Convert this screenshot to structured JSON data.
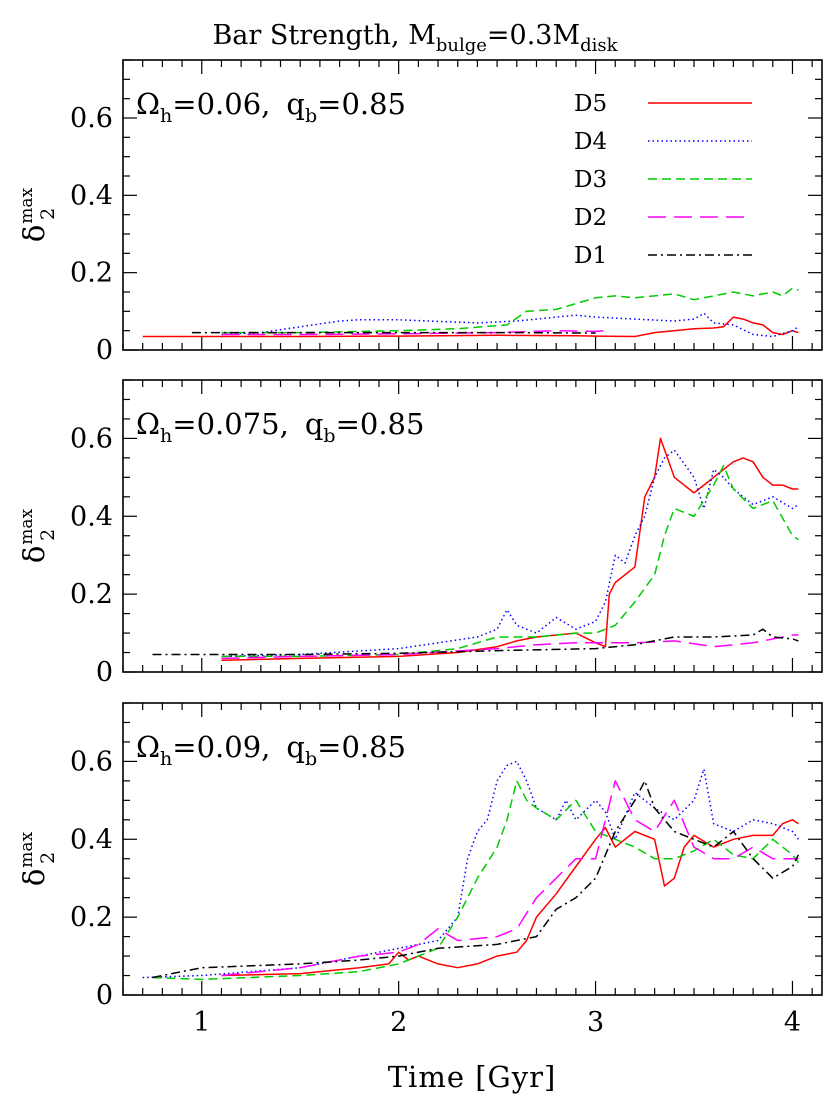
{
  "figure": {
    "title_main": "Bar Strength, M",
    "title_sub1": "bulge",
    "title_mid": "=0.3M",
    "title_sub2": "disk",
    "xlabel": "Time [Gyr]",
    "ylabel_main": "δ",
    "ylabel_sup": "max",
    "ylabel_sub": "2"
  },
  "chart_data": [
    {
      "type": "line",
      "panel": "top",
      "annotation": {
        "omega": "Ω",
        "omega_sub": "h",
        "omega_val": "=0.06,",
        "q": "q",
        "q_sub": "b",
        "q_val": "=0.85"
      },
      "xlim": [
        0.6,
        4.15
      ],
      "ylim": [
        0,
        0.75
      ],
      "xticks": [
        1,
        2,
        3,
        4
      ],
      "yticks": [
        0,
        0.2,
        0.4,
        0.6
      ],
      "ytick_labels": [
        "0",
        "0.2",
        "0.4",
        "0.6"
      ],
      "legend": {
        "placement": "top-right",
        "entries": [
          "D5",
          "D4",
          "D3",
          "D2",
          "D1"
        ]
      },
      "series": [
        {
          "name": "D5",
          "color": "#ff0000",
          "dash": "solid",
          "x": [
            0.7,
            1.0,
            1.5,
            2.0,
            2.5,
            2.9,
            3.0,
            3.2,
            3.3,
            3.5,
            3.6,
            3.65,
            3.7,
            3.75,
            3.8,
            3.85,
            3.9,
            3.95,
            4.0,
            4.03
          ],
          "y": [
            0.035,
            0.035,
            0.035,
            0.036,
            0.038,
            0.037,
            0.036,
            0.035,
            0.045,
            0.055,
            0.057,
            0.06,
            0.085,
            0.08,
            0.07,
            0.065,
            0.045,
            0.04,
            0.05,
            0.045
          ]
        },
        {
          "name": "D4",
          "color": "#0000ff",
          "dash": "dotted",
          "x": [
            1.1,
            1.3,
            1.5,
            1.7,
            1.8,
            2.0,
            2.2,
            2.4,
            2.6,
            2.7,
            2.8,
            2.9,
            3.0,
            3.2,
            3.4,
            3.5,
            3.55,
            3.6,
            3.7,
            3.8,
            3.9,
            4.0,
            4.03
          ],
          "y": [
            0.04,
            0.045,
            0.06,
            0.075,
            0.078,
            0.078,
            0.074,
            0.07,
            0.075,
            0.08,
            0.085,
            0.09,
            0.085,
            0.08,
            0.075,
            0.08,
            0.095,
            0.07,
            0.065,
            0.04,
            0.035,
            0.05,
            0.06
          ]
        },
        {
          "name": "D3",
          "color": "#00cc00",
          "dash": "dashed",
          "x": [
            1.1,
            1.5,
            2.0,
            2.3,
            2.55,
            2.65,
            2.8,
            2.9,
            3.0,
            3.1,
            3.2,
            3.3,
            3.4,
            3.5,
            3.6,
            3.7,
            3.8,
            3.9,
            3.95,
            4.0,
            4.03
          ],
          "y": [
            0.045,
            0.045,
            0.05,
            0.055,
            0.065,
            0.1,
            0.105,
            0.12,
            0.135,
            0.14,
            0.135,
            0.14,
            0.145,
            0.13,
            0.14,
            0.15,
            0.14,
            0.15,
            0.14,
            0.16,
            0.155
          ]
        },
        {
          "name": "D2",
          "color": "#ff00ff",
          "dash": "longdash",
          "x": [
            1.1,
            1.5,
            2.0,
            2.5,
            2.8,
            3.0,
            3.05
          ],
          "y": [
            0.04,
            0.04,
            0.042,
            0.045,
            0.05,
            0.048,
            0.05
          ]
        },
        {
          "name": "D1",
          "color": "#000000",
          "dash": "dashdot",
          "x": [
            0.95,
            1.2,
            1.5,
            2.0,
            2.3,
            2.6,
            2.9,
            3.0
          ],
          "y": [
            0.045,
            0.045,
            0.045,
            0.045,
            0.045,
            0.045,
            0.044,
            0.044
          ]
        }
      ]
    },
    {
      "type": "line",
      "panel": "middle",
      "annotation": {
        "omega": "Ω",
        "omega_sub": "h",
        "omega_val": "=0.075,",
        "q": "q",
        "q_sub": "b",
        "q_val": "=0.85"
      },
      "xlim": [
        0.6,
        4.15
      ],
      "ylim": [
        0,
        0.75
      ],
      "xticks": [
        1,
        2,
        3,
        4
      ],
      "yticks": [
        0,
        0.2,
        0.4,
        0.6
      ],
      "ytick_labels": [
        "0",
        "0.2",
        "0.4",
        "0.6"
      ],
      "series": [
        {
          "name": "D5",
          "color": "#ff0000",
          "dash": "solid",
          "x": [
            1.1,
            1.5,
            2.0,
            2.3,
            2.5,
            2.6,
            2.7,
            2.8,
            2.9,
            3.0,
            3.05,
            3.07,
            3.1,
            3.2,
            3.25,
            3.3,
            3.33,
            3.4,
            3.5,
            3.55,
            3.6,
            3.65,
            3.7,
            3.75,
            3.8,
            3.85,
            3.9,
            3.95,
            4.0,
            4.03
          ],
          "y": [
            0.03,
            0.035,
            0.04,
            0.05,
            0.065,
            0.08,
            0.09,
            0.095,
            0.1,
            0.075,
            0.065,
            0.2,
            0.23,
            0.27,
            0.45,
            0.5,
            0.6,
            0.5,
            0.46,
            0.48,
            0.5,
            0.52,
            0.54,
            0.55,
            0.54,
            0.5,
            0.48,
            0.48,
            0.47,
            0.47
          ]
        },
        {
          "name": "D4",
          "color": "#0000ff",
          "dash": "dotted",
          "x": [
            1.1,
            1.5,
            2.0,
            2.2,
            2.4,
            2.5,
            2.55,
            2.6,
            2.7,
            2.8,
            2.9,
            3.0,
            3.05,
            3.1,
            3.15,
            3.2,
            3.25,
            3.3,
            3.35,
            3.4,
            3.5,
            3.55,
            3.6,
            3.65,
            3.7,
            3.8,
            3.9,
            4.0,
            4.03
          ],
          "y": [
            0.04,
            0.045,
            0.06,
            0.075,
            0.09,
            0.11,
            0.16,
            0.12,
            0.1,
            0.14,
            0.11,
            0.13,
            0.18,
            0.3,
            0.28,
            0.35,
            0.4,
            0.5,
            0.55,
            0.57,
            0.5,
            0.42,
            0.52,
            0.5,
            0.47,
            0.43,
            0.45,
            0.42,
            0.43
          ]
        },
        {
          "name": "D3",
          "color": "#00cc00",
          "dash": "dashed",
          "x": [
            1.1,
            1.5,
            2.0,
            2.3,
            2.5,
            2.7,
            2.9,
            3.0,
            3.1,
            3.2,
            3.3,
            3.35,
            3.4,
            3.5,
            3.6,
            3.65,
            3.7,
            3.8,
            3.9,
            4.0,
            4.03
          ],
          "y": [
            0.04,
            0.04,
            0.045,
            0.06,
            0.09,
            0.09,
            0.1,
            0.1,
            0.12,
            0.18,
            0.25,
            0.35,
            0.42,
            0.4,
            0.48,
            0.53,
            0.47,
            0.42,
            0.44,
            0.35,
            0.34
          ]
        },
        {
          "name": "D2",
          "color": "#ff00ff",
          "dash": "longdash",
          "x": [
            1.1,
            1.5,
            2.0,
            2.5,
            2.7,
            2.9,
            3.0,
            3.2,
            3.4,
            3.6,
            3.8,
            4.0,
            4.03
          ],
          "y": [
            0.035,
            0.04,
            0.045,
            0.06,
            0.07,
            0.075,
            0.075,
            0.075,
            0.08,
            0.065,
            0.075,
            0.095,
            0.095
          ]
        },
        {
          "name": "D1",
          "color": "#000000",
          "dash": "dashdot",
          "x": [
            0.75,
            1.0,
            1.5,
            2.0,
            2.5,
            2.8,
            3.0,
            3.2,
            3.4,
            3.6,
            3.8,
            3.85,
            3.9,
            4.0,
            4.03
          ],
          "y": [
            0.045,
            0.045,
            0.045,
            0.048,
            0.055,
            0.058,
            0.06,
            0.07,
            0.09,
            0.09,
            0.095,
            0.11,
            0.09,
            0.085,
            0.08
          ]
        }
      ]
    },
    {
      "type": "line",
      "panel": "bottom",
      "annotation": {
        "omega": "Ω",
        "omega_sub": "h",
        "omega_val": "=0.09,",
        "q": "q",
        "q_sub": "b",
        "q_val": "=0.85"
      },
      "xlim": [
        0.6,
        4.15
      ],
      "ylim": [
        0,
        0.75
      ],
      "xticks": [
        1,
        2,
        3,
        4
      ],
      "xtick_labels": [
        "1",
        "2",
        "3",
        "4"
      ],
      "yticks": [
        0,
        0.2,
        0.4,
        0.6
      ],
      "ytick_labels": [
        "0",
        "0.2",
        "0.4",
        "0.6"
      ],
      "series": [
        {
          "name": "D5",
          "color": "#ff0000",
          "dash": "solid",
          "x": [
            1.1,
            1.5,
            1.8,
            1.95,
            2.0,
            2.05,
            2.1,
            2.2,
            2.3,
            2.4,
            2.5,
            2.6,
            2.65,
            2.7,
            2.8,
            2.9,
            3.0,
            3.05,
            3.1,
            3.2,
            3.3,
            3.35,
            3.4,
            3.45,
            3.5,
            3.6,
            3.7,
            3.8,
            3.9,
            3.95,
            4.0,
            4.03
          ],
          "y": [
            0.05,
            0.055,
            0.07,
            0.08,
            0.11,
            0.09,
            0.1,
            0.08,
            0.07,
            0.08,
            0.1,
            0.11,
            0.14,
            0.2,
            0.26,
            0.33,
            0.4,
            0.43,
            0.38,
            0.42,
            0.4,
            0.28,
            0.3,
            0.38,
            0.41,
            0.38,
            0.4,
            0.41,
            0.41,
            0.44,
            0.45,
            0.44
          ]
        },
        {
          "name": "D4",
          "color": "#0000ff",
          "dash": "dotted",
          "x": [
            0.7,
            1.0,
            1.5,
            1.8,
            2.0,
            2.2,
            2.3,
            2.35,
            2.4,
            2.45,
            2.5,
            2.55,
            2.6,
            2.65,
            2.7,
            2.8,
            2.85,
            2.9,
            3.0,
            3.05,
            3.1,
            3.2,
            3.3,
            3.4,
            3.5,
            3.55,
            3.6,
            3.7,
            3.8,
            3.9,
            4.0,
            4.03
          ],
          "y": [
            0.045,
            0.05,
            0.07,
            0.1,
            0.12,
            0.14,
            0.2,
            0.35,
            0.42,
            0.45,
            0.55,
            0.59,
            0.6,
            0.55,
            0.48,
            0.45,
            0.5,
            0.45,
            0.5,
            0.47,
            0.4,
            0.52,
            0.48,
            0.45,
            0.5,
            0.58,
            0.44,
            0.42,
            0.45,
            0.44,
            0.42,
            0.4
          ]
        },
        {
          "name": "D3",
          "color": "#00cc00",
          "dash": "dashed",
          "x": [
            0.75,
            1.0,
            1.5,
            1.8,
            2.0,
            2.1,
            2.2,
            2.3,
            2.35,
            2.4,
            2.5,
            2.55,
            2.6,
            2.65,
            2.7,
            2.8,
            2.9,
            3.0,
            3.1,
            3.2,
            3.3,
            3.4,
            3.5,
            3.6,
            3.7,
            3.8,
            3.9,
            4.0,
            4.03
          ],
          "y": [
            0.045,
            0.04,
            0.05,
            0.06,
            0.08,
            0.1,
            0.12,
            0.2,
            0.25,
            0.3,
            0.38,
            0.45,
            0.55,
            0.5,
            0.48,
            0.45,
            0.5,
            0.42,
            0.4,
            0.38,
            0.35,
            0.35,
            0.37,
            0.4,
            0.36,
            0.35,
            0.4,
            0.36,
            0.34
          ]
        },
        {
          "name": "D2",
          "color": "#ff00ff",
          "dash": "longdash",
          "x": [
            1.1,
            1.5,
            1.8,
            2.0,
            2.1,
            2.2,
            2.3,
            2.5,
            2.6,
            2.7,
            2.8,
            2.9,
            3.0,
            3.1,
            3.2,
            3.3,
            3.4,
            3.5,
            3.6,
            3.7,
            3.8,
            3.9,
            4.0,
            4.03
          ],
          "y": [
            0.05,
            0.07,
            0.1,
            0.11,
            0.13,
            0.17,
            0.14,
            0.15,
            0.17,
            0.25,
            0.3,
            0.35,
            0.35,
            0.55,
            0.45,
            0.42,
            0.5,
            0.38,
            0.35,
            0.35,
            0.38,
            0.35,
            0.35,
            0.35
          ]
        },
        {
          "name": "D1",
          "color": "#000000",
          "dash": "dashdot",
          "x": [
            0.75,
            1.0,
            1.5,
            1.8,
            2.0,
            2.2,
            2.5,
            2.6,
            2.7,
            2.8,
            2.9,
            3.0,
            3.1,
            3.2,
            3.25,
            3.3,
            3.4,
            3.5,
            3.6,
            3.7,
            3.8,
            3.9,
            4.0,
            4.03
          ],
          "y": [
            0.045,
            0.07,
            0.08,
            0.09,
            0.1,
            0.12,
            0.13,
            0.14,
            0.15,
            0.22,
            0.25,
            0.3,
            0.42,
            0.5,
            0.55,
            0.48,
            0.42,
            0.4,
            0.38,
            0.42,
            0.35,
            0.3,
            0.33,
            0.36
          ]
        }
      ]
    }
  ]
}
